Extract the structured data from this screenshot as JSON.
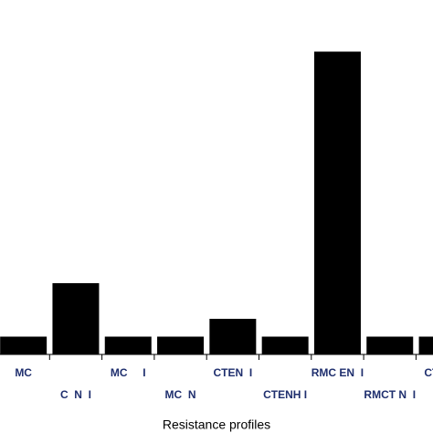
{
  "chart_data": {
    "type": "bar",
    "x_label": "Resistance profiles",
    "categories": [
      "MC",
      "C  N  I",
      "MC     I",
      "MC  N",
      "CTEN  I",
      "CTENH I",
      "RMC EN  I",
      "RMCT N  I",
      "CTEN I"
    ],
    "values": [
      1,
      4,
      1,
      1,
      2,
      1,
      17,
      1,
      1
    ],
    "color": "#000000",
    "label_color": "#1f2f6e",
    "ylim": [
      0,
      20
    ]
  }
}
